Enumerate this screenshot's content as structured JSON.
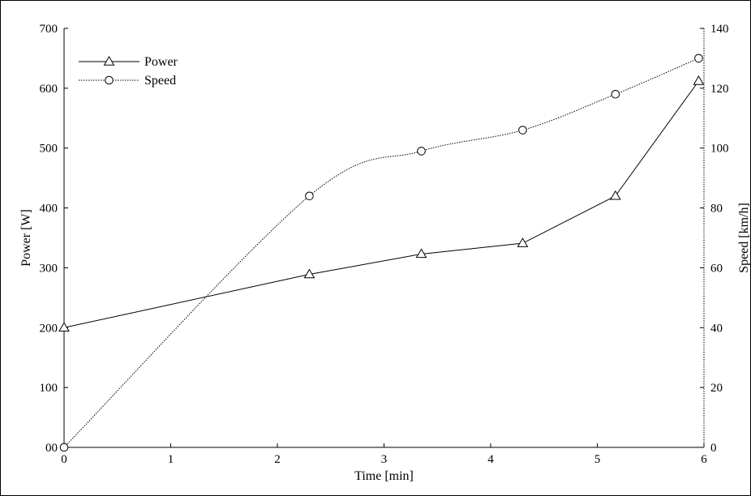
{
  "chart_data": {
    "type": "line",
    "title": "",
    "xlabel": "Time [min]",
    "ylabel": "Power [W]",
    "y2label": "Speed [km/h]",
    "xlim": [
      0,
      6
    ],
    "ylim": [
      0,
      700
    ],
    "y2lim": [
      0,
      140
    ],
    "x_ticks": [
      "0",
      "1",
      "2",
      "3",
      "4",
      "5",
      "6"
    ],
    "y_ticks": [
      "00",
      "100",
      "200",
      "300",
      "400",
      "500",
      "600",
      "700"
    ],
    "y2_ticks": [
      "0",
      "20",
      "40",
      "60",
      "80",
      "100",
      "120",
      "140"
    ],
    "grid": false,
    "legend_position": "top-left",
    "series": [
      {
        "name": "Power",
        "axis": "left",
        "marker": "triangle",
        "line_style": "solid",
        "color": "#000000",
        "points": [
          [
            0,
            200
          ],
          [
            2.3,
            289
          ],
          [
            3.35,
            323
          ],
          [
            4.3,
            341
          ],
          [
            5.17,
            420
          ],
          [
            5.95,
            612
          ]
        ]
      },
      {
        "name": "Speed",
        "axis": "right",
        "marker": "circle",
        "line_style": "dotted",
        "color": "#000000",
        "points": [
          [
            0,
            0
          ],
          [
            2.3,
            84
          ],
          [
            3.35,
            99
          ],
          [
            4.3,
            106
          ],
          [
            5.17,
            118
          ],
          [
            5.95,
            130
          ]
        ]
      }
    ]
  }
}
